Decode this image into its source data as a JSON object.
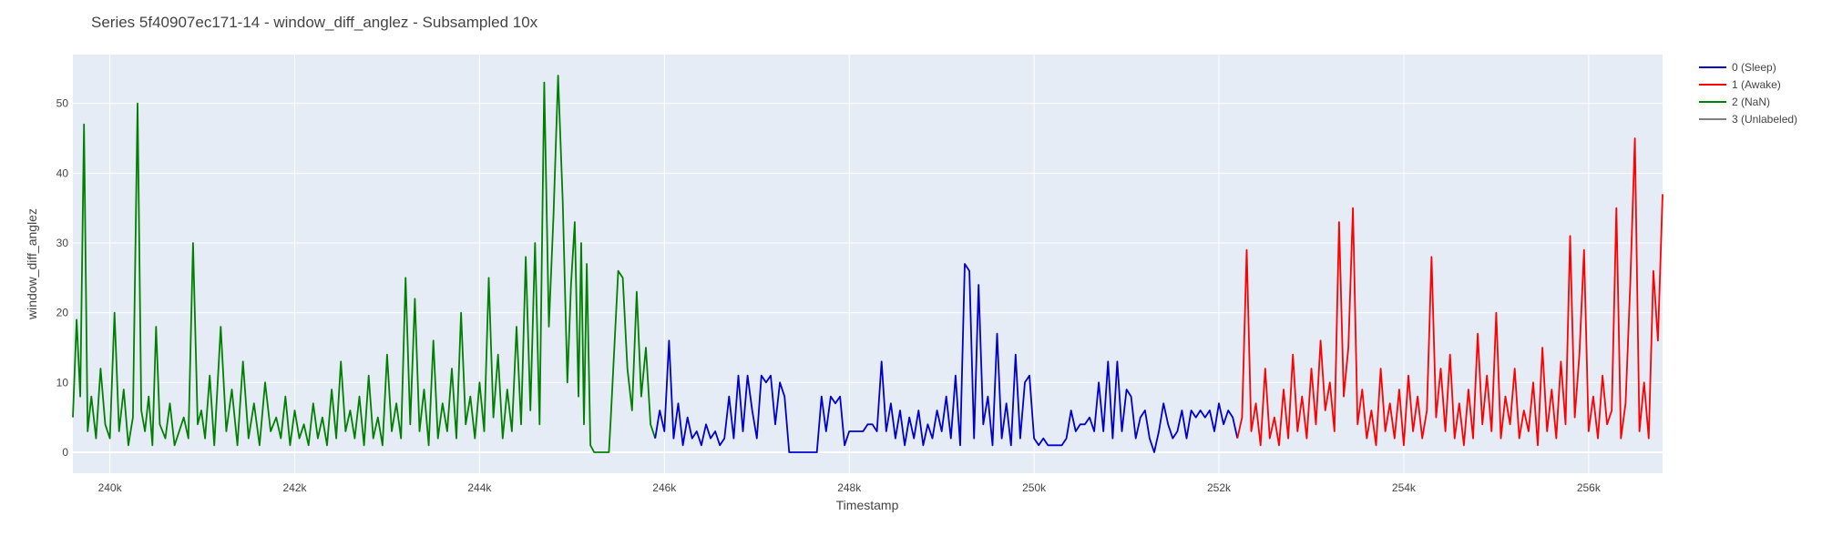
{
  "chart_data": {
    "type": "line",
    "title": "Series 5f40907ec171-14 - window_diff_anglez - Subsampled 10x",
    "xlabel": "Timestamp",
    "ylabel": "window_diff_anglez",
    "xlim": [
      239600,
      256800
    ],
    "ylim": [
      -3,
      57
    ],
    "x_ticks": [
      240000,
      242000,
      244000,
      246000,
      248000,
      250000,
      252000,
      254000,
      256000
    ],
    "x_tick_labels": [
      "240k",
      "242k",
      "244k",
      "246k",
      "248k",
      "250k",
      "252k",
      "254k",
      "256k"
    ],
    "y_ticks": [
      0,
      10,
      20,
      30,
      40,
      50
    ],
    "y_tick_labels": [
      "0",
      "10",
      "20",
      "30",
      "40",
      "50"
    ],
    "grid": true,
    "legend_position": "top-right",
    "legend": [
      {
        "label": "0 (Sleep)",
        "color": "#0000cc"
      },
      {
        "label": "1 (Awake)",
        "color": "#ff0000"
      },
      {
        "label": "2 (NaN)",
        "color": "#008000"
      },
      {
        "label": "3 (Unlabeled)",
        "color": "#808080"
      }
    ],
    "series": [
      {
        "name": "2 (NaN)",
        "color": "#008000",
        "x": [
          239600,
          239640,
          239680,
          239720,
          239760,
          239800,
          239850,
          239900,
          239950,
          240000,
          240050,
          240100,
          240150,
          240200,
          240250,
          240300,
          240340,
          240380,
          240420,
          240460,
          240500,
          240540,
          240600,
          240650,
          240700,
          240750,
          240800,
          240850,
          240900,
          240950,
          240990,
          241030,
          241080,
          241130,
          241200,
          241260,
          241320,
          241380,
          241440,
          241500,
          241560,
          241620,
          241680,
          241740,
          241800,
          241850,
          241900,
          241950,
          242000,
          242050,
          242100,
          242150,
          242200,
          242250,
          242300,
          242350,
          242400,
          242450,
          242500,
          242550,
          242600,
          242650,
          242700,
          242750,
          242800,
          242850,
          242900,
          242950,
          243000,
          243050,
          243100,
          243150,
          243200,
          243250,
          243300,
          243350,
          243400,
          243450,
          243500,
          243550,
          243600,
          243650,
          243700,
          243750,
          243800,
          243850,
          243900,
          243950,
          244000,
          244050,
          244100,
          244150,
          244200,
          244250,
          244300,
          244350,
          244400,
          244450,
          244500,
          244550,
          244600,
          244650,
          244700,
          244750,
          244800,
          244850,
          244900,
          244950,
          244990,
          245030,
          245070,
          245100,
          245130,
          245160,
          245200,
          245240,
          245280,
          245320,
          245360,
          245400,
          245420,
          245500,
          245550,
          245600,
          245650,
          245700,
          245750,
          245800,
          245850,
          245900
        ],
        "y": [
          5,
          19,
          8,
          47,
          3,
          8,
          2,
          12,
          4,
          2,
          20,
          3,
          9,
          1,
          5,
          50,
          6,
          3,
          8,
          1,
          18,
          4,
          2,
          7,
          1,
          3,
          5,
          2,
          30,
          4,
          6,
          2,
          11,
          1,
          18,
          3,
          9,
          1,
          13,
          2,
          7,
          1,
          10,
          3,
          5,
          2,
          8,
          1,
          6,
          2,
          4,
          1,
          7,
          2,
          5,
          1,
          9,
          2,
          13,
          3,
          6,
          2,
          8,
          1,
          11,
          2,
          5,
          1,
          14,
          3,
          7,
          2,
          25,
          4,
          22,
          3,
          9,
          1,
          16,
          2,
          7,
          3,
          12,
          2,
          20,
          4,
          8,
          2,
          10,
          3,
          25,
          5,
          14,
          2,
          9,
          3,
          18,
          4,
          28,
          6,
          30,
          4,
          53,
          18,
          34,
          54,
          36,
          10,
          24,
          33,
          8,
          30,
          4,
          27,
          1,
          0,
          0,
          0,
          0,
          0,
          5,
          26,
          25,
          12,
          6,
          23,
          8,
          15,
          4,
          2
        ]
      },
      {
        "name": "0 (Sleep)",
        "color": "#0000cc",
        "x": [
          245900,
          245950,
          246000,
          246050,
          246100,
          246150,
          246200,
          246250,
          246300,
          246350,
          246400,
          246450,
          246500,
          246550,
          246600,
          246650,
          246700,
          246750,
          246800,
          246850,
          246900,
          246950,
          247000,
          247050,
          247100,
          247150,
          247200,
          247250,
          247300,
          247350,
          247400,
          247450,
          247500,
          247550,
          247600,
          247650,
          247700,
          247750,
          247800,
          247850,
          247900,
          247950,
          248000,
          248050,
          248100,
          248150,
          248200,
          248250,
          248300,
          248350,
          248400,
          248450,
          248500,
          248550,
          248600,
          248650,
          248700,
          248750,
          248800,
          248850,
          248900,
          248950,
          249000,
          249050,
          249100,
          249150,
          249200,
          249250,
          249300,
          249350,
          249400,
          249450,
          249500,
          249550,
          249600,
          249650,
          249700,
          249750,
          249800,
          249850,
          249900,
          249950,
          250000,
          250050,
          250100,
          250150,
          250200,
          250250,
          250300,
          250350,
          250400,
          250450,
          250500,
          250550,
          250600,
          250650,
          250700,
          250750,
          250800,
          250850,
          250900,
          250950,
          251000,
          251050,
          251100,
          251150,
          251200,
          251250,
          251300,
          251350,
          251400,
          251450,
          251500,
          251550,
          251600,
          251650,
          251700,
          251750,
          251800,
          251850,
          251900,
          251950,
          252000,
          252050,
          252100,
          252150,
          252200
        ],
        "y": [
          2,
          6,
          3,
          16,
          2,
          7,
          1,
          5,
          2,
          3,
          1,
          4,
          2,
          3,
          1,
          2,
          8,
          2,
          11,
          3,
          11,
          6,
          2,
          11,
          10,
          11,
          4,
          10,
          8,
          0,
          0,
          0,
          0,
          0,
          0,
          0,
          8,
          3,
          8,
          7,
          8,
          1,
          3,
          3,
          3,
          3,
          4,
          4,
          3,
          13,
          3,
          7,
          2,
          6,
          1,
          5,
          2,
          6,
          1,
          4,
          2,
          6,
          3,
          8,
          2,
          11,
          1,
          27,
          26,
          2,
          24,
          4,
          8,
          1,
          17,
          2,
          7,
          1,
          14,
          2,
          10,
          11,
          2,
          1,
          2,
          1,
          1,
          1,
          1,
          2,
          6,
          3,
          4,
          4,
          5,
          3,
          10,
          3,
          13,
          2,
          13,
          3,
          9,
          8,
          2,
          5,
          6,
          2,
          0,
          3,
          7,
          4,
          2,
          3,
          6,
          2,
          6,
          5,
          6,
          5,
          6,
          3,
          7,
          4,
          6,
          5,
          2
        ]
      },
      {
        "name": "1 (Awake)",
        "color": "#ff0000",
        "x": [
          252200,
          252250,
          252300,
          252350,
          252400,
          252450,
          252500,
          252550,
          252600,
          252650,
          252700,
          252750,
          252800,
          252850,
          252900,
          252950,
          253000,
          253050,
          253100,
          253150,
          253200,
          253250,
          253300,
          253350,
          253400,
          253450,
          253500,
          253550,
          253600,
          253650,
          253700,
          253750,
          253800,
          253850,
          253900,
          253950,
          254000,
          254050,
          254100,
          254150,
          254200,
          254250,
          254300,
          254350,
          254400,
          254450,
          254500,
          254550,
          254600,
          254650,
          254700,
          254750,
          254800,
          254850,
          254900,
          254950,
          255000,
          255050,
          255100,
          255150,
          255200,
          255250,
          255300,
          255350,
          255400,
          255450,
          255500,
          255550,
          255600,
          255650,
          255700,
          255750,
          255800,
          255850,
          255900,
          255950,
          256000,
          256050,
          256100,
          256150,
          256200,
          256250,
          256300,
          256350,
          256400,
          256450,
          256500,
          256550,
          256600,
          256650,
          256700,
          256750,
          256800
        ],
        "y": [
          2,
          5,
          29,
          3,
          7,
          1,
          12,
          2,
          5,
          1,
          9,
          2,
          14,
          3,
          8,
          2,
          12,
          4,
          16,
          6,
          10,
          3,
          33,
          8,
          15,
          35,
          4,
          9,
          2,
          6,
          1,
          12,
          3,
          7,
          2,
          9,
          1,
          11,
          3,
          8,
          2,
          6,
          28,
          5,
          12,
          3,
          14,
          2,
          7,
          1,
          9,
          2,
          17,
          4,
          11,
          3,
          20,
          2,
          8,
          4,
          12,
          2,
          6,
          3,
          10,
          1,
          15,
          3,
          9,
          2,
          13,
          4,
          31,
          5,
          14,
          29,
          3,
          8,
          2,
          11,
          4,
          6,
          35,
          2,
          7,
          24,
          45,
          3,
          10,
          2,
          26,
          16,
          37
        ]
      }
    ]
  }
}
